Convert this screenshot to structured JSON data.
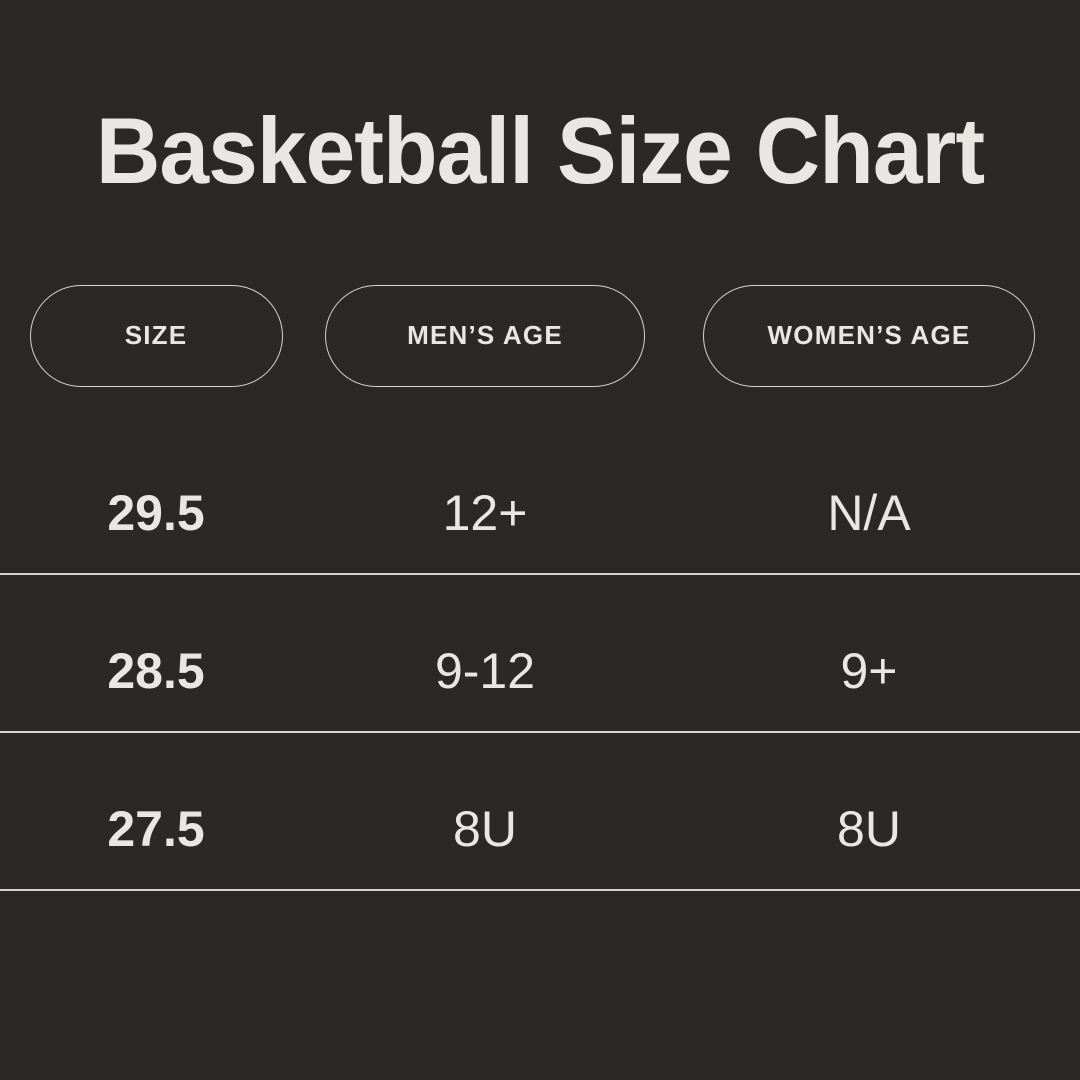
{
  "title": "Basketball Size Chart",
  "colors": {
    "bg": "#2a2928",
    "ink": "#e9e7e1",
    "line": "#d6d4ce"
  },
  "chart_data": {
    "type": "table",
    "title": "Basketball Size Chart",
    "columns": [
      "SIZE",
      "MEN’S AGE",
      "WOMEN’S AGE"
    ],
    "rows": [
      [
        "29.5",
        "12+",
        "N/A"
      ],
      [
        "28.5",
        "9-12",
        "9+"
      ],
      [
        "27.5",
        "8U",
        "8U"
      ]
    ]
  }
}
